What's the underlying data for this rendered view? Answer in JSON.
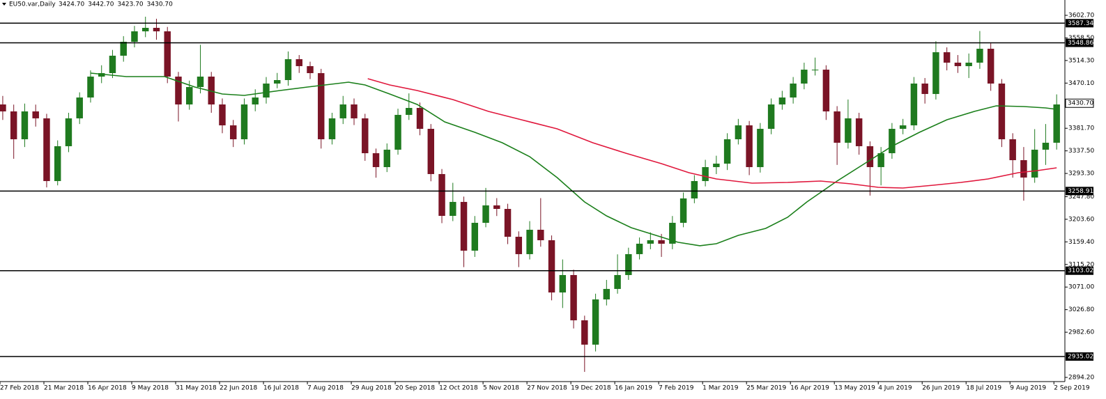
{
  "chart_data": {
    "type": "candlestick",
    "title": "EU50.var,Daily",
    "header_values": [
      "3424.70",
      "3442.70",
      "3423.70",
      "3430.70"
    ],
    "x": [
      0,
      4,
      8,
      12,
      16,
      20,
      24,
      28,
      32,
      36,
      40,
      44,
      48,
      52,
      56,
      60,
      64,
      68,
      72,
      76,
      80,
      84,
      88,
      92,
      96,
      100,
      104,
      108,
      112,
      116,
      120,
      124,
      128,
      132,
      136,
      140,
      144,
      148,
      152,
      156,
      160,
      164,
      168,
      172,
      176,
      180,
      184,
      188,
      192,
      196,
      200,
      204,
      208,
      212,
      216,
      220,
      224,
      228,
      232,
      236,
      240,
      244,
      248,
      252,
      256,
      260,
      264,
      268,
      272,
      276,
      280,
      284,
      288,
      292,
      296,
      300,
      304,
      308,
      312,
      316,
      320,
      324,
      328,
      332,
      336,
      340,
      344,
      348,
      352,
      356,
      360,
      364,
      368,
      372,
      376,
      380,
      384
    ],
    "open": [
      3428.3,
      3414.7,
      3360.2,
      3414.7,
      3401.1,
      3278.4,
      3346.6,
      3401.1,
      3441.9,
      3482.8,
      3489.6,
      3523.7,
      3550.9,
      3571.4,
      3578.2,
      3571.4,
      3482.8,
      3428.3,
      3462.4,
      3482.8,
      3428.3,
      3387.4,
      3360.2,
      3428.3,
      3441.9,
      3469.2,
      3476.0,
      3516.9,
      3503.3,
      3489.6,
      3360.2,
      3401.1,
      3428.3,
      3401.1,
      3332.9,
      3305.7,
      3339.8,
      3407.9,
      3421.5,
      3380.6,
      3292.1,
      3210.3,
      3237.6,
      3142.2,
      3196.7,
      3230.8,
      3223.9,
      3169.4,
      3135.4,
      3183.1,
      3162.6,
      3060.4,
      3094.5,
      3005.9,
      2958.3,
      3046.8,
      3067.3,
      3094.5,
      3135.4,
      3155.8,
      3162.6,
      3155.8,
      3196.7,
      3244.4,
      3278.4,
      3305.7,
      3312.5,
      3360.2,
      3387.4,
      3305.7,
      3380.6,
      3428.3,
      3441.9,
      3469.2,
      3496.4,
      3496.4,
      3414.7,
      3353.4,
      3401.1,
      3346.6,
      3305.7,
      3332.9,
      3380.6,
      3387.4,
      3469.2,
      3448.8,
      3530.5,
      3510.1,
      3503.3,
      3510.1,
      3537.3,
      3469.2,
      3360.2,
      3319.3,
      3285.3,
      3339.8,
      3353.4
    ],
    "high": [
      3445,
      3428,
      3430,
      3428,
      3410,
      3358,
      3412,
      3452,
      3495,
      3505,
      3535,
      3562,
      3582,
      3600,
      3596,
      3580,
      3492,
      3475,
      3545,
      3492,
      3440,
      3398,
      3440,
      3458,
      3482,
      3490,
      3532,
      3525,
      3512,
      3498,
      3412,
      3445,
      3440,
      3410,
      3342,
      3352,
      3420,
      3450,
      3432,
      3390,
      3302,
      3275,
      3248,
      3210,
      3265,
      3245,
      3234,
      3180,
      3200,
      3245,
      3172,
      3125,
      3105,
      3015,
      3058,
      3085,
      3135,
      3148,
      3168,
      3178,
      3175,
      3210,
      3256,
      3290,
      3320,
      3328,
      3372,
      3400,
      3396,
      3392,
      3440,
      3455,
      3482,
      3510,
      3520,
      3505,
      3425,
      3438,
      3412,
      3356,
      3345,
      3392,
      3400,
      3482,
      3480,
      3552,
      3540,
      3525,
      3528,
      3572,
      3548,
      3478,
      3372,
      3345,
      3380,
      3390,
      3448
    ],
    "low": [
      3398,
      3322,
      3345,
      3385,
      3266,
      3270,
      3335,
      3390,
      3432,
      3470,
      3480,
      3512,
      3540,
      3560,
      3555,
      3470,
      3395,
      3418,
      3450,
      3412,
      3372,
      3345,
      3350,
      3415,
      3430,
      3460,
      3465,
      3490,
      3478,
      3342,
      3350,
      3390,
      3388,
      3318,
      3285,
      3296,
      3330,
      3398,
      3368,
      3278,
      3196,
      3200,
      3110,
      3130,
      3188,
      3210,
      3155,
      3110,
      3125,
      3150,
      3045,
      3030,
      2990,
      2905,
      2945,
      3035,
      3058,
      3085,
      3125,
      3145,
      3130,
      3145,
      3188,
      3235,
      3268,
      3292,
      3300,
      3350,
      3290,
      3295,
      3370,
      3418,
      3430,
      3458,
      3485,
      3398,
      3310,
      3342,
      3330,
      3250,
      3270,
      3322,
      3370,
      3378,
      3430,
      3438,
      3495,
      3490,
      3480,
      3498,
      3455,
      3345,
      3285,
      3240,
      3275,
      3310,
      3340
    ],
    "close": [
      3414.7,
      3360.2,
      3414.7,
      3401.1,
      3278.4,
      3346.6,
      3401.1,
      3441.9,
      3482.8,
      3489.6,
      3523.7,
      3550.9,
      3571.4,
      3578.2,
      3571.4,
      3482.8,
      3428.3,
      3462.4,
      3482.8,
      3428.3,
      3387.4,
      3360.2,
      3428.3,
      3441.9,
      3469.2,
      3476.0,
      3516.9,
      3503.3,
      3489.6,
      3360.2,
      3401.1,
      3428.3,
      3401.1,
      3332.9,
      3305.7,
      3339.8,
      3407.9,
      3421.5,
      3380.6,
      3292.1,
      3210.3,
      3237.6,
      3142.2,
      3196.7,
      3230.8,
      3223.9,
      3169.4,
      3135.4,
      3183.1,
      3162.6,
      3060.4,
      3094.5,
      3005.9,
      2958.3,
      3046.8,
      3067.3,
      3094.5,
      3135.4,
      3155.8,
      3162.6,
      3155.8,
      3196.7,
      3244.4,
      3278.4,
      3305.7,
      3312.5,
      3360.2,
      3387.4,
      3305.7,
      3380.6,
      3428.3,
      3441.9,
      3469.2,
      3496.4,
      3496.4,
      3414.7,
      3353.4,
      3401.1,
      3346.6,
      3305.7,
      3332.9,
      3380.6,
      3387.4,
      3469.2,
      3448.8,
      3530.5,
      3510.1,
      3503.3,
      3510.1,
      3537.3,
      3469.2,
      3360.2,
      3319.3,
      3285.3,
      3339.8,
      3353.4,
      3428.3
    ],
    "up_color": "#1f7a1f",
    "down_color": "#7a1426",
    "overlays": [
      {
        "type": "line",
        "color": "#1a7f1a",
        "x": [
          32,
          45,
          59,
          70,
          80,
          88,
          101,
          111,
          126,
          132,
          141,
          151,
          161,
          172,
          182,
          192,
          202,
          212,
          220,
          229,
          238,
          246,
          254,
          260,
          268,
          278,
          286,
          293,
          304,
          314,
          324,
          334,
          344,
          354,
          362,
          372,
          380,
          384
        ],
        "values": [
          3489.6,
          3482.8,
          3482.8,
          3462.4,
          3448.8,
          3446.0,
          3455.6,
          3462.4,
          3471.9,
          3466.5,
          3448.8,
          3428.3,
          3394.3,
          3373.8,
          3353.4,
          3326.1,
          3285.3,
          3237.6,
          3210.3,
          3187.2,
          3172.2,
          3158.6,
          3151.8,
          3155.8,
          3172.2,
          3185.8,
          3207.6,
          3237.6,
          3278.4,
          3312.5,
          3346.6,
          3373.8,
          3398.4,
          3414.7,
          3425.6,
          3424.2,
          3421.5,
          3418.8
        ]
      },
      {
        "type": "line",
        "color": "#e0173c",
        "x": [
          133,
          141,
          151,
          164,
          177,
          189,
          202,
          215,
          227,
          240,
          250,
          260,
          273,
          286,
          298,
          309,
          319,
          328,
          339,
          349,
          359,
          370,
          377,
          384
        ],
        "values": [
          3478.7,
          3466.5,
          3455.6,
          3437.9,
          3414.7,
          3398.4,
          3380.6,
          3353.4,
          3332.9,
          3312.5,
          3294.8,
          3282.5,
          3274.4,
          3275.7,
          3278.4,
          3273.0,
          3266.2,
          3264.8,
          3270.3,
          3275.7,
          3282.5,
          3294.8,
          3298.9,
          3304.3
        ]
      }
    ],
    "levels": [
      3587.34,
      3548.86,
      3258.91,
      3103.02,
      2935.02
    ],
    "last_price": {
      "value": 3430.7,
      "label": "3430.70"
    },
    "xlim": [
      -1,
      387
    ],
    "xticks": [
      {
        "value": -1,
        "label": "27 Feb 2018"
      },
      {
        "value": 15,
        "label": "21 Mar 2018"
      },
      {
        "value": 31,
        "label": "16 Apr 2018"
      },
      {
        "value": 47,
        "label": "9 May 2018"
      },
      {
        "value": 63,
        "label": "31 May 2018"
      },
      {
        "value": 79,
        "label": "22 Jun 2018"
      },
      {
        "value": 95,
        "label": "16 Jul 2018"
      },
      {
        "value": 111,
        "label": "7 Aug 2018"
      },
      {
        "value": 127,
        "label": "29 Aug 2018"
      },
      {
        "value": 143,
        "label": "20 Sep 2018"
      },
      {
        "value": 159,
        "label": "12 Oct 2018"
      },
      {
        "value": 175,
        "label": "5 Nov 2018"
      },
      {
        "value": 191,
        "label": "27 Nov 2018"
      },
      {
        "value": 207,
        "label": "19 Dec 2018"
      },
      {
        "value": 223,
        "label": "16 Jan 2019"
      },
      {
        "value": 239,
        "label": "7 Feb 2019"
      },
      {
        "value": 255,
        "label": "1 Mar 2019"
      },
      {
        "value": 271,
        "label": "25 Mar 2019"
      },
      {
        "value": 287,
        "label": "16 Apr 2019"
      },
      {
        "value": 303,
        "label": "13 May 2019"
      },
      {
        "value": 319,
        "label": "4 Jun 2019"
      },
      {
        "value": 335,
        "label": "26 Jun 2019"
      },
      {
        "value": 351,
        "label": "18 Jul 2019"
      },
      {
        "value": 367,
        "label": "9 Aug 2019"
      },
      {
        "value": 383,
        "label": "2 Sep 2019"
      }
    ],
    "ylim": [
      2886.0,
      3632.7
    ],
    "yticks": [
      {
        "value": 3602.7,
        "label": "3602.70"
      },
      {
        "value": 3558.5,
        "label": "3558.50"
      },
      {
        "value": 3514.3,
        "label": "3514.30"
      },
      {
        "value": 3470.1,
        "label": "3470.10"
      },
      {
        "value": 3425.9,
        "label": "3425.90"
      },
      {
        "value": 3381.7,
        "label": "3381.70"
      },
      {
        "value": 3337.5,
        "label": "3337.50"
      },
      {
        "value": 3293.3,
        "label": "3293.30"
      },
      {
        "value": 3247.8,
        "label": "3247.80"
      },
      {
        "value": 3203.6,
        "label": "3203.60"
      },
      {
        "value": 3159.4,
        "label": "3159.40"
      },
      {
        "value": 3115.2,
        "label": "3115.20"
      },
      {
        "value": 3071.0,
        "label": "3071.00"
      },
      {
        "value": 3026.8,
        "label": "3026.80"
      },
      {
        "value": 2982.6,
        "label": "2982.60"
      },
      {
        "value": 2894.2,
        "label": "2894.20"
      }
    ]
  }
}
